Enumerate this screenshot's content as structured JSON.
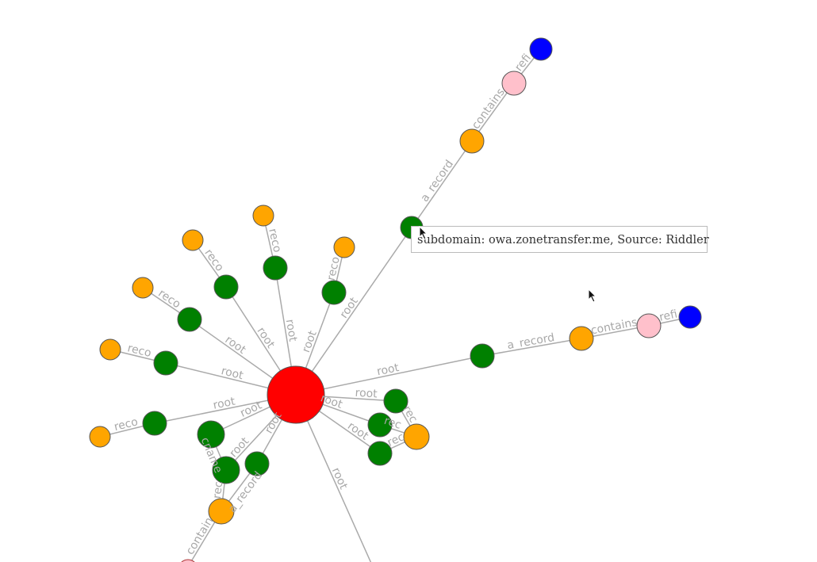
{
  "tooltip": {
    "text": "subdomain: owa.zonetransfer.me, Source: Riddler"
  },
  "colors": {
    "root": "#ff0000",
    "subdomain": "#008000",
    "ip": "#ffa500",
    "netblock": "#ffc0cb",
    "asn": "#0000ff",
    "edge": "#aaaaaa"
  },
  "nodes": [
    {
      "id": "c",
      "type": "root"
    },
    {
      "id": "g1",
      "type": "subdomain"
    },
    {
      "id": "g2",
      "type": "subdomain"
    },
    {
      "id": "g3",
      "type": "subdomain"
    },
    {
      "id": "g4",
      "type": "subdomain"
    },
    {
      "id": "g5",
      "type": "subdomain"
    },
    {
      "id": "g6",
      "type": "subdomain"
    },
    {
      "id": "g7",
      "type": "subdomain"
    },
    {
      "id": "g8",
      "type": "subdomain"
    },
    {
      "id": "g9",
      "type": "subdomain"
    },
    {
      "id": "g10",
      "type": "subdomain"
    },
    {
      "id": "g11",
      "type": "subdomain"
    },
    {
      "id": "g12",
      "type": "subdomain"
    },
    {
      "id": "g13",
      "type": "subdomain"
    },
    {
      "id": "g14",
      "type": "subdomain"
    },
    {
      "id": "o1",
      "type": "ip"
    },
    {
      "id": "o2",
      "type": "ip"
    },
    {
      "id": "o3",
      "type": "ip"
    },
    {
      "id": "o4",
      "type": "ip"
    },
    {
      "id": "o5",
      "type": "ip"
    },
    {
      "id": "o6",
      "type": "ip"
    },
    {
      "id": "o7",
      "type": "ip"
    },
    {
      "id": "o8",
      "type": "ip"
    },
    {
      "id": "o9",
      "type": "ip"
    },
    {
      "id": "o10",
      "type": "ip"
    },
    {
      "id": "p1",
      "type": "netblock"
    },
    {
      "id": "p2",
      "type": "netblock"
    },
    {
      "id": "b1",
      "type": "asn"
    },
    {
      "id": "b2",
      "type": "asn"
    }
  ],
  "edges": [
    {
      "s": "c",
      "t": "g1",
      "label": "root"
    },
    {
      "s": "c",
      "t": "g2",
      "label": "root"
    },
    {
      "s": "c",
      "t": "g3",
      "label": "root"
    },
    {
      "s": "c",
      "t": "g4",
      "label": "root"
    },
    {
      "s": "c",
      "t": "g5",
      "label": "root"
    },
    {
      "s": "c",
      "t": "g6",
      "label": "root"
    },
    {
      "s": "c",
      "t": "g7",
      "label": "root"
    },
    {
      "s": "c",
      "t": "g8",
      "label": "root"
    },
    {
      "s": "c",
      "t": "g9",
      "label": "root"
    },
    {
      "s": "c",
      "t": "g10",
      "label": "root"
    },
    {
      "s": "c",
      "t": "g11",
      "label": "root"
    },
    {
      "s": "c",
      "t": "g12",
      "label": "root"
    },
    {
      "s": "c",
      "t": "g13",
      "label": "root"
    },
    {
      "s": "c",
      "t": "g14",
      "label": "root"
    },
    {
      "s": "c",
      "t": "off2",
      "label": "root"
    },
    {
      "s": "g1",
      "t": "o1",
      "label": "a_record"
    },
    {
      "s": "o1",
      "t": "p1",
      "label": "contains"
    },
    {
      "s": "p1",
      "t": "b1",
      "label": "refi"
    },
    {
      "s": "g2",
      "t": "o2",
      "label": "a_record"
    },
    {
      "s": "o2",
      "t": "p2",
      "label": "contains"
    },
    {
      "s": "p2",
      "t": "b2",
      "label": "refi"
    },
    {
      "s": "g3",
      "t": "o3",
      "label": "rec"
    },
    {
      "s": "g4",
      "t": "o3",
      "label": "rec"
    },
    {
      "s": "g5",
      "t": "o3",
      "label": "rec"
    },
    {
      "s": "g6",
      "t": "o4",
      "label": "reco"
    },
    {
      "s": "g7",
      "t": "o5",
      "label": "reco"
    },
    {
      "s": "g8",
      "t": "o6",
      "label": "reco"
    },
    {
      "s": "g9",
      "t": "o7",
      "label": "reco"
    },
    {
      "s": "g10",
      "t": "o8",
      "label": "reco"
    },
    {
      "s": "g11",
      "t": "o9",
      "label": "reco"
    },
    {
      "s": "g12",
      "t": "g13",
      "label": "cname"
    },
    {
      "s": "g13",
      "t": "o10",
      "label": "rec"
    },
    {
      "s": "g14",
      "t": "o10",
      "label": "a_record"
    },
    {
      "s": "o10",
      "t": "off1",
      "label": "contain"
    }
  ]
}
